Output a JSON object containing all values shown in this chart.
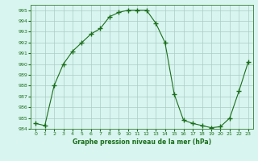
{
  "x": [
    0,
    1,
    2,
    3,
    4,
    5,
    6,
    7,
    8,
    9,
    10,
    11,
    12,
    13,
    14,
    15,
    16,
    17,
    18,
    19,
    20,
    21,
    22,
    23
  ],
  "y": [
    984.5,
    984.3,
    988.0,
    990.0,
    991.2,
    992.0,
    992.8,
    993.3,
    994.4,
    994.8,
    995.0,
    995.0,
    995.0,
    993.8,
    992.0,
    987.2,
    984.8,
    984.5,
    984.3,
    984.1,
    984.2,
    985.0,
    987.5,
    990.2
  ],
  "ylim": [
    984,
    995.5
  ],
  "yticks": [
    984,
    985,
    986,
    987,
    988,
    989,
    990,
    991,
    992,
    993,
    994,
    995
  ],
  "xticks": [
    0,
    1,
    2,
    3,
    4,
    5,
    6,
    7,
    8,
    9,
    10,
    11,
    12,
    13,
    14,
    15,
    16,
    17,
    18,
    19,
    20,
    21,
    22,
    23
  ],
  "xlabel": "Graphe pression niveau de la mer (hPa)",
  "line_color": "#1a6e1a",
  "marker_color": "#1a6e1a",
  "bg_color": "#d9f5f0",
  "grid_color": "#aaccc4",
  "xlabel_color": "#1a6e1a",
  "tick_color": "#1a6e1a",
  "spine_color": "#4a8a4a"
}
